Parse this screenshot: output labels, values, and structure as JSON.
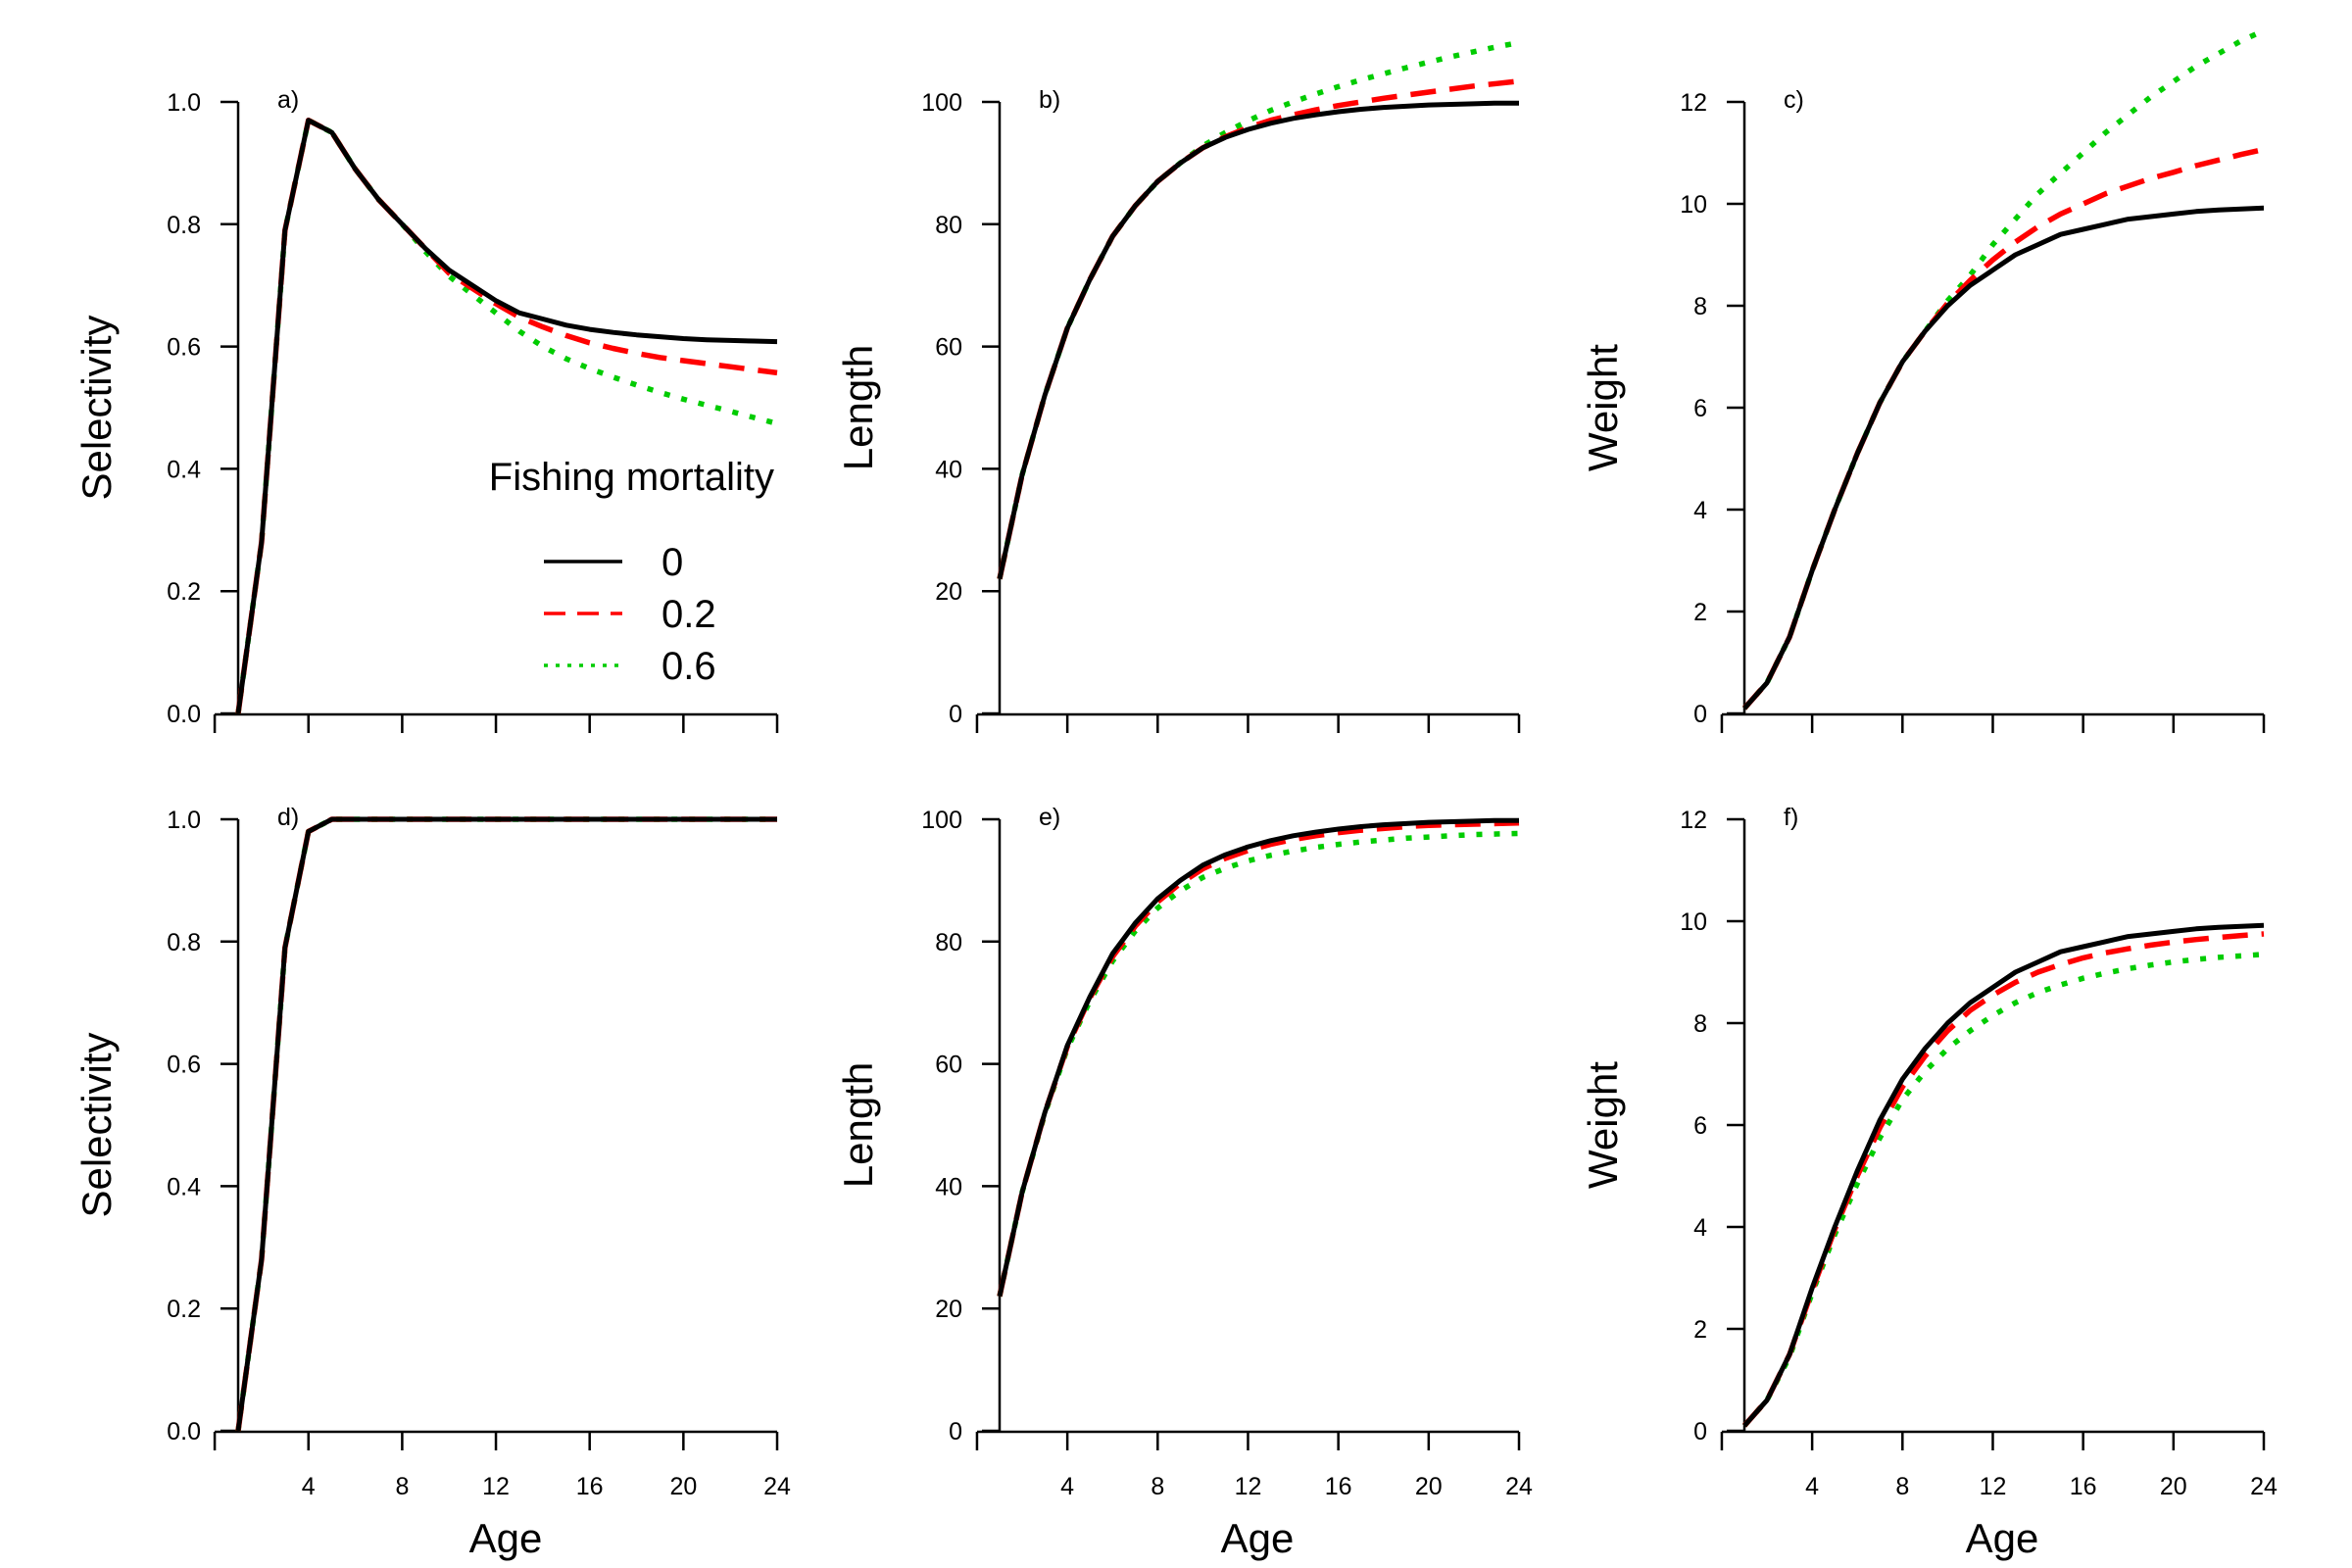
{
  "colors": {
    "f0": "#000000",
    "f02": "#ff0000",
    "f06": "#00cc00"
  },
  "legend": {
    "title": "Fishing mortality",
    "entries": [
      {
        "label": "0",
        "color": "#000000",
        "dash": "solid"
      },
      {
        "label": "0.2",
        "color": "#ff0000",
        "dash": "dashed"
      },
      {
        "label": "0.6",
        "color": "#00cc00",
        "dash": "dotted"
      }
    ]
  },
  "chart_data": [
    {
      "panel": "a)",
      "type": "line",
      "xlabel": "",
      "ylabel": "Selectivity",
      "xlim": [
        1,
        24
      ],
      "ylim": [
        0,
        1
      ],
      "xticks": [
        4,
        8,
        12,
        16,
        20,
        24
      ],
      "yticks": [
        "0.0",
        "0.2",
        "0.4",
        "0.6",
        "0.8",
        "1.0"
      ],
      "x": [
        1,
        2,
        3,
        4,
        5,
        6,
        7,
        8,
        9,
        10,
        11,
        12,
        13,
        14,
        15,
        16,
        17,
        18,
        19,
        20,
        21,
        22,
        23,
        24
      ],
      "series": [
        {
          "name": "0",
          "values": [
            0,
            0.28,
            0.79,
            0.97,
            0.95,
            0.89,
            0.84,
            0.8,
            0.76,
            0.725,
            0.7,
            0.675,
            0.655,
            0.645,
            0.635,
            0.628,
            0.623,
            0.619,
            0.616,
            0.613,
            0.611,
            0.61,
            0.609,
            0.608
          ]
        },
        {
          "name": "0.2",
          "values": [
            0,
            0.28,
            0.79,
            0.97,
            0.95,
            0.89,
            0.84,
            0.8,
            0.76,
            0.72,
            0.695,
            0.67,
            0.648,
            0.632,
            0.618,
            0.606,
            0.597,
            0.589,
            0.582,
            0.577,
            0.572,
            0.567,
            0.562,
            0.557
          ]
        },
        {
          "name": "0.6",
          "values": [
            0,
            0.28,
            0.79,
            0.97,
            0.95,
            0.89,
            0.84,
            0.8,
            0.755,
            0.715,
            0.685,
            0.655,
            0.625,
            0.6,
            0.58,
            0.564,
            0.55,
            0.537,
            0.525,
            0.514,
            0.504,
            0.494,
            0.484,
            0.474
          ]
        }
      ]
    },
    {
      "panel": "b)",
      "type": "line",
      "xlabel": "",
      "ylabel": "Length",
      "xlim": [
        1,
        24
      ],
      "ylim": [
        0,
        110
      ],
      "xticks": [
        4,
        8,
        12,
        16,
        20,
        24
      ],
      "yticks": [
        "0",
        "20",
        "40",
        "60",
        "80",
        "100"
      ],
      "x": [
        1,
        2,
        3,
        4,
        5,
        6,
        7,
        8,
        9,
        10,
        11,
        12,
        13,
        14,
        15,
        16,
        17,
        18,
        19,
        20,
        21,
        22,
        23,
        24
      ],
      "series": [
        {
          "name": "0",
          "values": [
            22,
            39,
            52,
            63,
            71,
            78,
            83,
            87,
            90,
            92.5,
            94.2,
            95.5,
            96.5,
            97.3,
            97.9,
            98.4,
            98.8,
            99.1,
            99.3,
            99.5,
            99.6,
            99.7,
            99.8,
            99.8
          ]
        },
        {
          "name": "0.2",
          "values": [
            22,
            39,
            52,
            63,
            71,
            78,
            83,
            87,
            90,
            92.5,
            94.3,
            95.8,
            97.0,
            97.9,
            98.7,
            99.4,
            100.0,
            100.6,
            101.1,
            101.6,
            102.1,
            102.6,
            103.0,
            103.4
          ]
        },
        {
          "name": "0.6",
          "values": [
            22,
            39,
            52,
            63,
            71,
            78,
            83,
            87,
            90,
            92.8,
            95.0,
            96.9,
            98.6,
            100.0,
            101.3,
            102.5,
            103.6,
            104.6,
            105.6,
            106.5,
            107.4,
            108.2,
            109.0,
            109.7
          ]
        }
      ]
    },
    {
      "panel": "c)",
      "type": "line",
      "xlabel": "",
      "ylabel": "Weight",
      "xlim": [
        1,
        24
      ],
      "ylim": [
        0,
        13.2
      ],
      "xticks": [
        4,
        8,
        12,
        16,
        20,
        24
      ],
      "yticks": [
        "0",
        "2",
        "4",
        "6",
        "8",
        "10",
        "12"
      ],
      "x": [
        1,
        2,
        3,
        4,
        5,
        6,
        7,
        8,
        9,
        10,
        11,
        12,
        13,
        14,
        15,
        16,
        17,
        18,
        19,
        20,
        21,
        22,
        23,
        24
      ],
      "series": [
        {
          "name": "0",
          "values": [
            0.1,
            0.6,
            1.5,
            2.8,
            4.0,
            5.1,
            6.1,
            6.9,
            7.5,
            8.0,
            8.4,
            8.7,
            9.0,
            9.2,
            9.4,
            9.5,
            9.6,
            9.7,
            9.75,
            9.8,
            9.85,
            9.88,
            9.9,
            9.92
          ]
        },
        {
          "name": "0.2",
          "values": [
            0.1,
            0.6,
            1.5,
            2.8,
            4.0,
            5.1,
            6.1,
            6.9,
            7.5,
            8.05,
            8.5,
            8.9,
            9.25,
            9.55,
            9.8,
            10.0,
            10.2,
            10.35,
            10.5,
            10.62,
            10.75,
            10.86,
            10.97,
            11.07
          ]
        },
        {
          "name": "0.6",
          "values": [
            0.1,
            0.6,
            1.5,
            2.8,
            4.0,
            5.1,
            6.1,
            6.9,
            7.5,
            8.1,
            8.6,
            9.2,
            9.7,
            10.2,
            10.6,
            11.0,
            11.4,
            11.75,
            12.1,
            12.4,
            12.7,
            12.95,
            13.2,
            13.4
          ]
        }
      ]
    },
    {
      "panel": "d)",
      "type": "line",
      "xlabel": "Age",
      "ylabel": "Selectivity",
      "xlim": [
        1,
        24
      ],
      "ylim": [
        0,
        1
      ],
      "xticks": [
        4,
        8,
        12,
        16,
        20,
        24
      ],
      "yticks": [
        "0.0",
        "0.2",
        "0.4",
        "0.6",
        "0.8",
        "1.0"
      ],
      "x": [
        1,
        2,
        3,
        4,
        5,
        6,
        7,
        8,
        9,
        10,
        11,
        12,
        13,
        14,
        15,
        16,
        17,
        18,
        19,
        20,
        21,
        22,
        23,
        24
      ],
      "series": [
        {
          "name": "0",
          "values": [
            0,
            0.28,
            0.79,
            0.98,
            1,
            1,
            1,
            1,
            1,
            1,
            1,
            1,
            1,
            1,
            1,
            1,
            1,
            1,
            1,
            1,
            1,
            1,
            1,
            1
          ]
        },
        {
          "name": "0.2",
          "values": [
            0,
            0.28,
            0.79,
            0.98,
            1,
            1,
            1,
            1,
            1,
            1,
            1,
            1,
            1,
            1,
            1,
            1,
            1,
            1,
            1,
            1,
            1,
            1,
            1,
            1
          ]
        },
        {
          "name": "0.6",
          "values": [
            0,
            0.28,
            0.79,
            0.98,
            1,
            1,
            1,
            1,
            1,
            1,
            1,
            1,
            1,
            1,
            1,
            1,
            1,
            1,
            1,
            1,
            1,
            1,
            1,
            1
          ]
        }
      ]
    },
    {
      "panel": "e)",
      "type": "line",
      "xlabel": "Age",
      "ylabel": "Length",
      "xlim": [
        1,
        24
      ],
      "ylim": [
        0,
        100
      ],
      "xticks": [
        4,
        8,
        12,
        16,
        20,
        24
      ],
      "yticks": [
        "0",
        "20",
        "40",
        "60",
        "80",
        "100"
      ],
      "x": [
        1,
        2,
        3,
        4,
        5,
        6,
        7,
        8,
        9,
        10,
        11,
        12,
        13,
        14,
        15,
        16,
        17,
        18,
        19,
        20,
        21,
        22,
        23,
        24
      ],
      "series": [
        {
          "name": "0",
          "values": [
            22,
            39,
            52,
            63,
            71,
            78,
            83,
            87,
            90,
            92.5,
            94.2,
            95.5,
            96.5,
            97.3,
            97.9,
            98.4,
            98.8,
            99.1,
            99.3,
            99.5,
            99.6,
            99.7,
            99.8,
            99.8
          ]
        },
        {
          "name": "0.2",
          "values": [
            22,
            39,
            52,
            62.8,
            70.8,
            77.5,
            82.5,
            86.5,
            89.5,
            91.9,
            93.6,
            94.9,
            95.9,
            96.7,
            97.3,
            97.8,
            98.2,
            98.5,
            98.8,
            99.0,
            99.1,
            99.2,
            99.3,
            99.4
          ]
        },
        {
          "name": "0.6",
          "values": [
            22,
            39,
            51.8,
            62.5,
            70.3,
            76.8,
            81.7,
            85.5,
            88.3,
            90.5,
            92.0,
            93.2,
            94.1,
            94.8,
            95.4,
            95.9,
            96.3,
            96.6,
            96.9,
            97.1,
            97.3,
            97.5,
            97.6,
            97.7
          ]
        }
      ]
    },
    {
      "panel": "f)",
      "type": "line",
      "xlabel": "Age",
      "ylabel": "Weight",
      "xlim": [
        1,
        24
      ],
      "ylim": [
        0,
        12
      ],
      "xticks": [
        4,
        8,
        12,
        16,
        20,
        24
      ],
      "yticks": [
        "0",
        "2",
        "4",
        "6",
        "8",
        "10",
        "12"
      ],
      "x": [
        1,
        2,
        3,
        4,
        5,
        6,
        7,
        8,
        9,
        10,
        11,
        12,
        13,
        14,
        15,
        16,
        17,
        18,
        19,
        20,
        21,
        22,
        23,
        24
      ],
      "series": [
        {
          "name": "0",
          "values": [
            0.1,
            0.6,
            1.5,
            2.8,
            4.0,
            5.1,
            6.1,
            6.9,
            7.5,
            8.0,
            8.4,
            8.7,
            9.0,
            9.2,
            9.4,
            9.5,
            9.6,
            9.7,
            9.75,
            9.8,
            9.85,
            9.88,
            9.9,
            9.92
          ]
        },
        {
          "name": "0.2",
          "values": [
            0.1,
            0.6,
            1.5,
            2.75,
            3.95,
            5.0,
            5.95,
            6.75,
            7.35,
            7.85,
            8.25,
            8.55,
            8.8,
            9.0,
            9.15,
            9.28,
            9.38,
            9.46,
            9.53,
            9.59,
            9.64,
            9.68,
            9.72,
            9.75
          ]
        },
        {
          "name": "0.6",
          "values": [
            0.1,
            0.6,
            1.45,
            2.7,
            3.85,
            4.85,
            5.75,
            6.5,
            7.05,
            7.5,
            7.85,
            8.15,
            8.4,
            8.6,
            8.75,
            8.88,
            8.98,
            9.07,
            9.14,
            9.2,
            9.25,
            9.29,
            9.32,
            9.35
          ]
        }
      ]
    }
  ]
}
